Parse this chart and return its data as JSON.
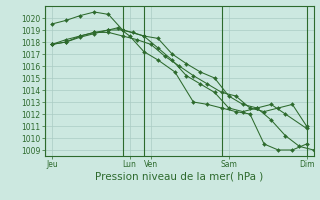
{
  "title": "Pression niveau de la mer( hPa )",
  "bg_color": "#cce8e0",
  "grid_color": "#aaccC4",
  "line_color": "#2d6a2d",
  "ylim": [
    1008.5,
    1021.0
  ],
  "yticks": [
    1009,
    1010,
    1011,
    1012,
    1013,
    1014,
    1015,
    1016,
    1017,
    1018,
    1019,
    1020
  ],
  "xtick_labels": [
    "Jeu",
    "Lun",
    "Ven",
    "Sam",
    "Dim"
  ],
  "xtick_positions": [
    0.5,
    6.0,
    7.5,
    13.0,
    18.5
  ],
  "vline_positions": [
    0.0,
    5.5,
    7.0,
    12.5,
    18.5
  ],
  "xlim": [
    0.0,
    19.0
  ],
  "lines": [
    {
      "x": [
        0.5,
        1.5,
        2.5,
        3.5,
        4.5,
        5.5,
        7.0,
        8.0,
        9.0,
        10.0,
        11.0,
        12.0,
        13.0,
        14.0,
        15.0,
        16.0,
        17.0,
        18.0,
        19.0
      ],
      "y": [
        1019.5,
        1019.8,
        1020.2,
        1020.5,
        1020.3,
        1019.0,
        1018.5,
        1018.3,
        1017.0,
        1016.2,
        1015.5,
        1015.0,
        1013.5,
        1012.8,
        1012.5,
        1011.5,
        1010.2,
        1009.3,
        1009.0
      ]
    },
    {
      "x": [
        0.5,
        1.5,
        2.5,
        3.5,
        4.5,
        5.5,
        6.5,
        7.5,
        8.5,
        9.5,
        10.5,
        11.5,
        12.5,
        13.5,
        14.5,
        15.5,
        16.5,
        17.5,
        18.5
      ],
      "y": [
        1017.8,
        1018.2,
        1018.5,
        1018.8,
        1018.8,
        1018.5,
        1018.2,
        1017.8,
        1016.8,
        1016.0,
        1015.2,
        1014.5,
        1013.8,
        1013.5,
        1012.5,
        1012.2,
        1012.5,
        1012.8,
        1011.0
      ]
    },
    {
      "x": [
        0.5,
        1.5,
        2.5,
        3.5,
        4.5,
        5.5,
        6.2,
        7.0,
        8.0,
        9.0,
        10.0,
        11.0,
        12.0,
        13.0,
        14.0,
        15.0,
        16.0,
        17.0,
        18.5
      ],
      "y": [
        1017.8,
        1018.0,
        1018.4,
        1018.7,
        1019.0,
        1019.0,
        1018.8,
        1018.5,
        1017.5,
        1016.5,
        1015.2,
        1014.5,
        1013.8,
        1012.5,
        1012.2,
        1012.5,
        1012.8,
        1012.0,
        1010.8
      ]
    },
    {
      "x": [
        0.5,
        1.5,
        2.5,
        3.5,
        4.5,
        5.2,
        6.0,
        7.0,
        8.0,
        9.2,
        10.5,
        11.5,
        12.5,
        13.5,
        14.5,
        15.5,
        16.5,
        17.5,
        18.5
      ],
      "y": [
        1017.8,
        1018.0,
        1018.5,
        1018.8,
        1019.0,
        1019.2,
        1018.5,
        1017.2,
        1016.5,
        1015.5,
        1013.0,
        1012.8,
        1012.5,
        1012.2,
        1012.0,
        1009.5,
        1009.0,
        1009.0,
        1009.5
      ]
    }
  ],
  "tick_fontsize": 5.5,
  "xlabel_fontsize": 7.5
}
